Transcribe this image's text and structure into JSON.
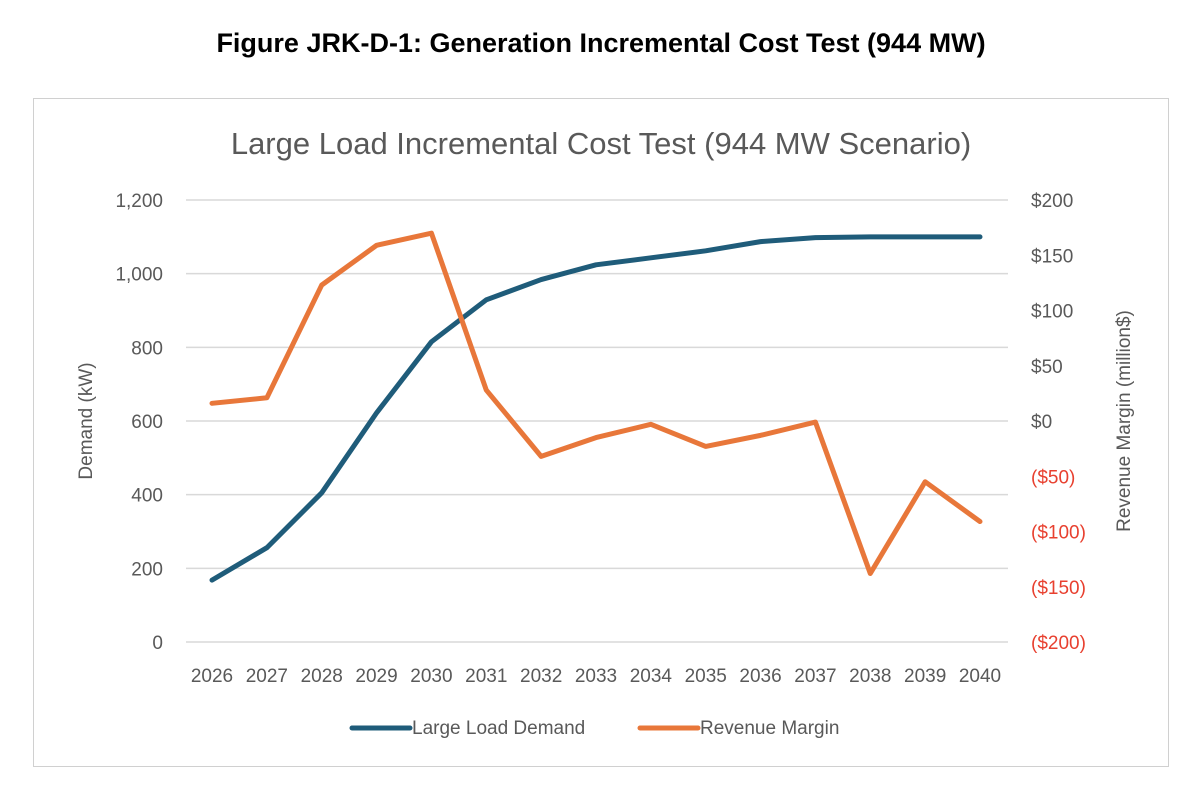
{
  "figure_title": "Figure JRK-D-1:  Generation Incremental Cost Test (944 MW)",
  "chart_data": {
    "type": "line",
    "title": "Large Load Incremental Cost Test (944 MW Scenario)",
    "x": [
      "2026",
      "2027",
      "2028",
      "2029",
      "2030",
      "2031",
      "2032",
      "2033",
      "2034",
      "2035",
      "2036",
      "2037",
      "2038",
      "2039",
      "2040"
    ],
    "ylabel": "Demand (kW)",
    "y2label": "Revenue Margin (million$)",
    "ylim": [
      0,
      1200
    ],
    "y2lim": [
      -200,
      200
    ],
    "yticks": [
      "0",
      "200",
      "400",
      "600",
      "800",
      "1,000",
      "1,200"
    ],
    "y2ticks": [
      "($200)",
      "($150)",
      "($100)",
      "($50)",
      "$0",
      "$50",
      "$100",
      "$150",
      "$200"
    ],
    "grid": true,
    "legend": "bottom",
    "series": [
      {
        "name": "Large Load Demand",
        "axis": "left",
        "color": "#1f5c7a",
        "values": [
          168,
          256,
          405,
          622,
          815,
          929,
          984,
          1024,
          1043,
          1062,
          1087,
          1098,
          1100,
          1100,
          1100
        ]
      },
      {
        "name": "Revenue Margin",
        "axis": "right",
        "color": "#e8773a",
        "values": [
          16,
          21,
          123,
          159,
          170,
          28,
          -32,
          -15,
          -3,
          -23,
          -13,
          -1,
          -138,
          -55,
          -91
        ]
      }
    ],
    "colors": {
      "text": "#595959",
      "negative": "#e8402f",
      "grid": "#d9d9d9"
    }
  }
}
